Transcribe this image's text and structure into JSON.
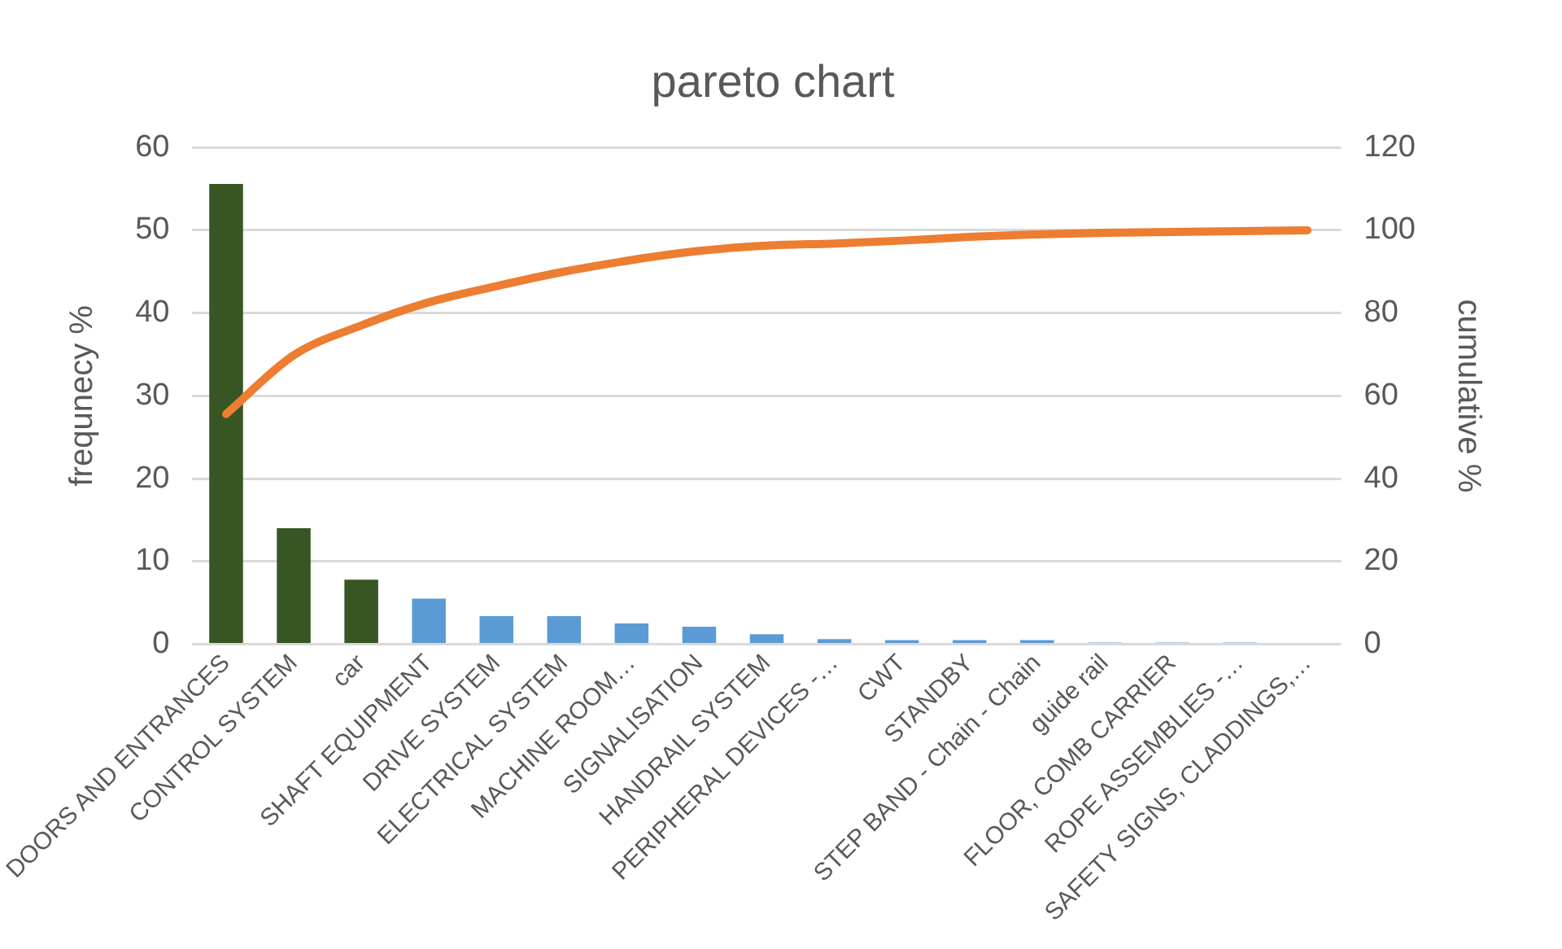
{
  "chart_data": {
    "type": "bar",
    "title": "pareto chart",
    "ylabel": "frequnecy %",
    "y2label": "cumulative %",
    "categories": [
      "DOORS AND ENTRANCES",
      "CONTROL SYSTEM",
      "car",
      "SHAFT EQUIPMENT",
      "DRIVE SYSTEM",
      "ELECTRICAL SYSTEM",
      "MACHINE ROOM…",
      "SIGNALISATION",
      "HANDRAIL SYSTEM",
      "PERIPHERAL DEVICES -…",
      "CWT",
      "STANDBY",
      "STEP BAND - Chain - Chain",
      "guide rail",
      "FLOOR, COMB CARRIER",
      "ROPE ASSEMBLIES -…",
      "SAFETY SIGNS, CLADDINGS,…"
    ],
    "series": [
      {
        "colors": [
          "#375623",
          "#375623",
          "#375623",
          "#5b9bd5",
          "#5b9bd5",
          "#5b9bd5",
          "#5b9bd5",
          "#5b9bd5",
          "#5b9bd5",
          "#5b9bd5",
          "#5b9bd5",
          "#5b9bd5",
          "#5b9bd5",
          "#5b9bd5",
          "#5b9bd5",
          "#5b9bd5",
          "#5b9bd5"
        ],
        "values": [
          55.6,
          14,
          7.8,
          5.5,
          3.4,
          3.4,
          2.5,
          2.1,
          1.2,
          0.6,
          0.5,
          0.5,
          0.5,
          0.2,
          0.2,
          0.2,
          0
        ]
      },
      {
        "type": "line",
        "axis": "y2",
        "color": "#ed7d31",
        "values": [
          55.6,
          69.8,
          77,
          82.6,
          86.5,
          90,
          92.8,
          95,
          96.3,
          96.8,
          97.5,
          98.4,
          99,
          99.4,
          99.6,
          99.8,
          100
        ]
      }
    ],
    "ylim": [
      0,
      60
    ],
    "yticks": [
      0,
      10,
      20,
      30,
      40,
      50,
      60
    ],
    "y2lim": [
      0,
      120
    ],
    "y2ticks": [
      0,
      20,
      40,
      60,
      80,
      100,
      120
    ],
    "grid": "y",
    "legend": false,
    "marker": "none",
    "line_style": "solid"
  }
}
